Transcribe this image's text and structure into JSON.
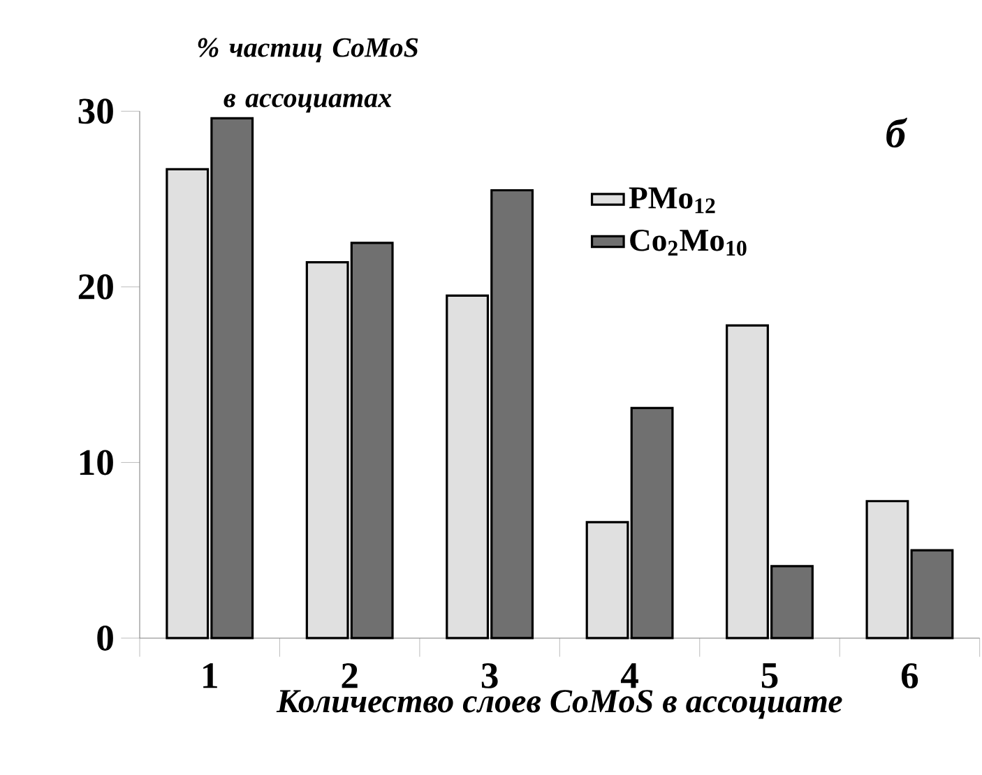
{
  "chart_data": {
    "type": "bar",
    "title": "% частиц CoMoS в ассоциатах",
    "xlabel": "Количество слоев CoMoS в ассоциате",
    "annotations": [
      "б"
    ],
    "categories": [
      "1",
      "2",
      "3",
      "4",
      "5",
      "6"
    ],
    "series": [
      {
        "name": "PMo$_{12}$",
        "color": "#e0e0e0",
        "values": [
          26.7,
          21.4,
          19.5,
          6.6,
          17.8,
          7.8
        ]
      },
      {
        "name": "Co$_{2}$Mo$_{10}$",
        "color": "#707070",
        "values": [
          29.6,
          22.5,
          25.5,
          13.1,
          4.1,
          5.0
        ]
      }
    ],
    "ylim": [
      0,
      30
    ],
    "yticks": [
      0,
      10,
      20,
      30
    ],
    "legend": "top right"
  }
}
